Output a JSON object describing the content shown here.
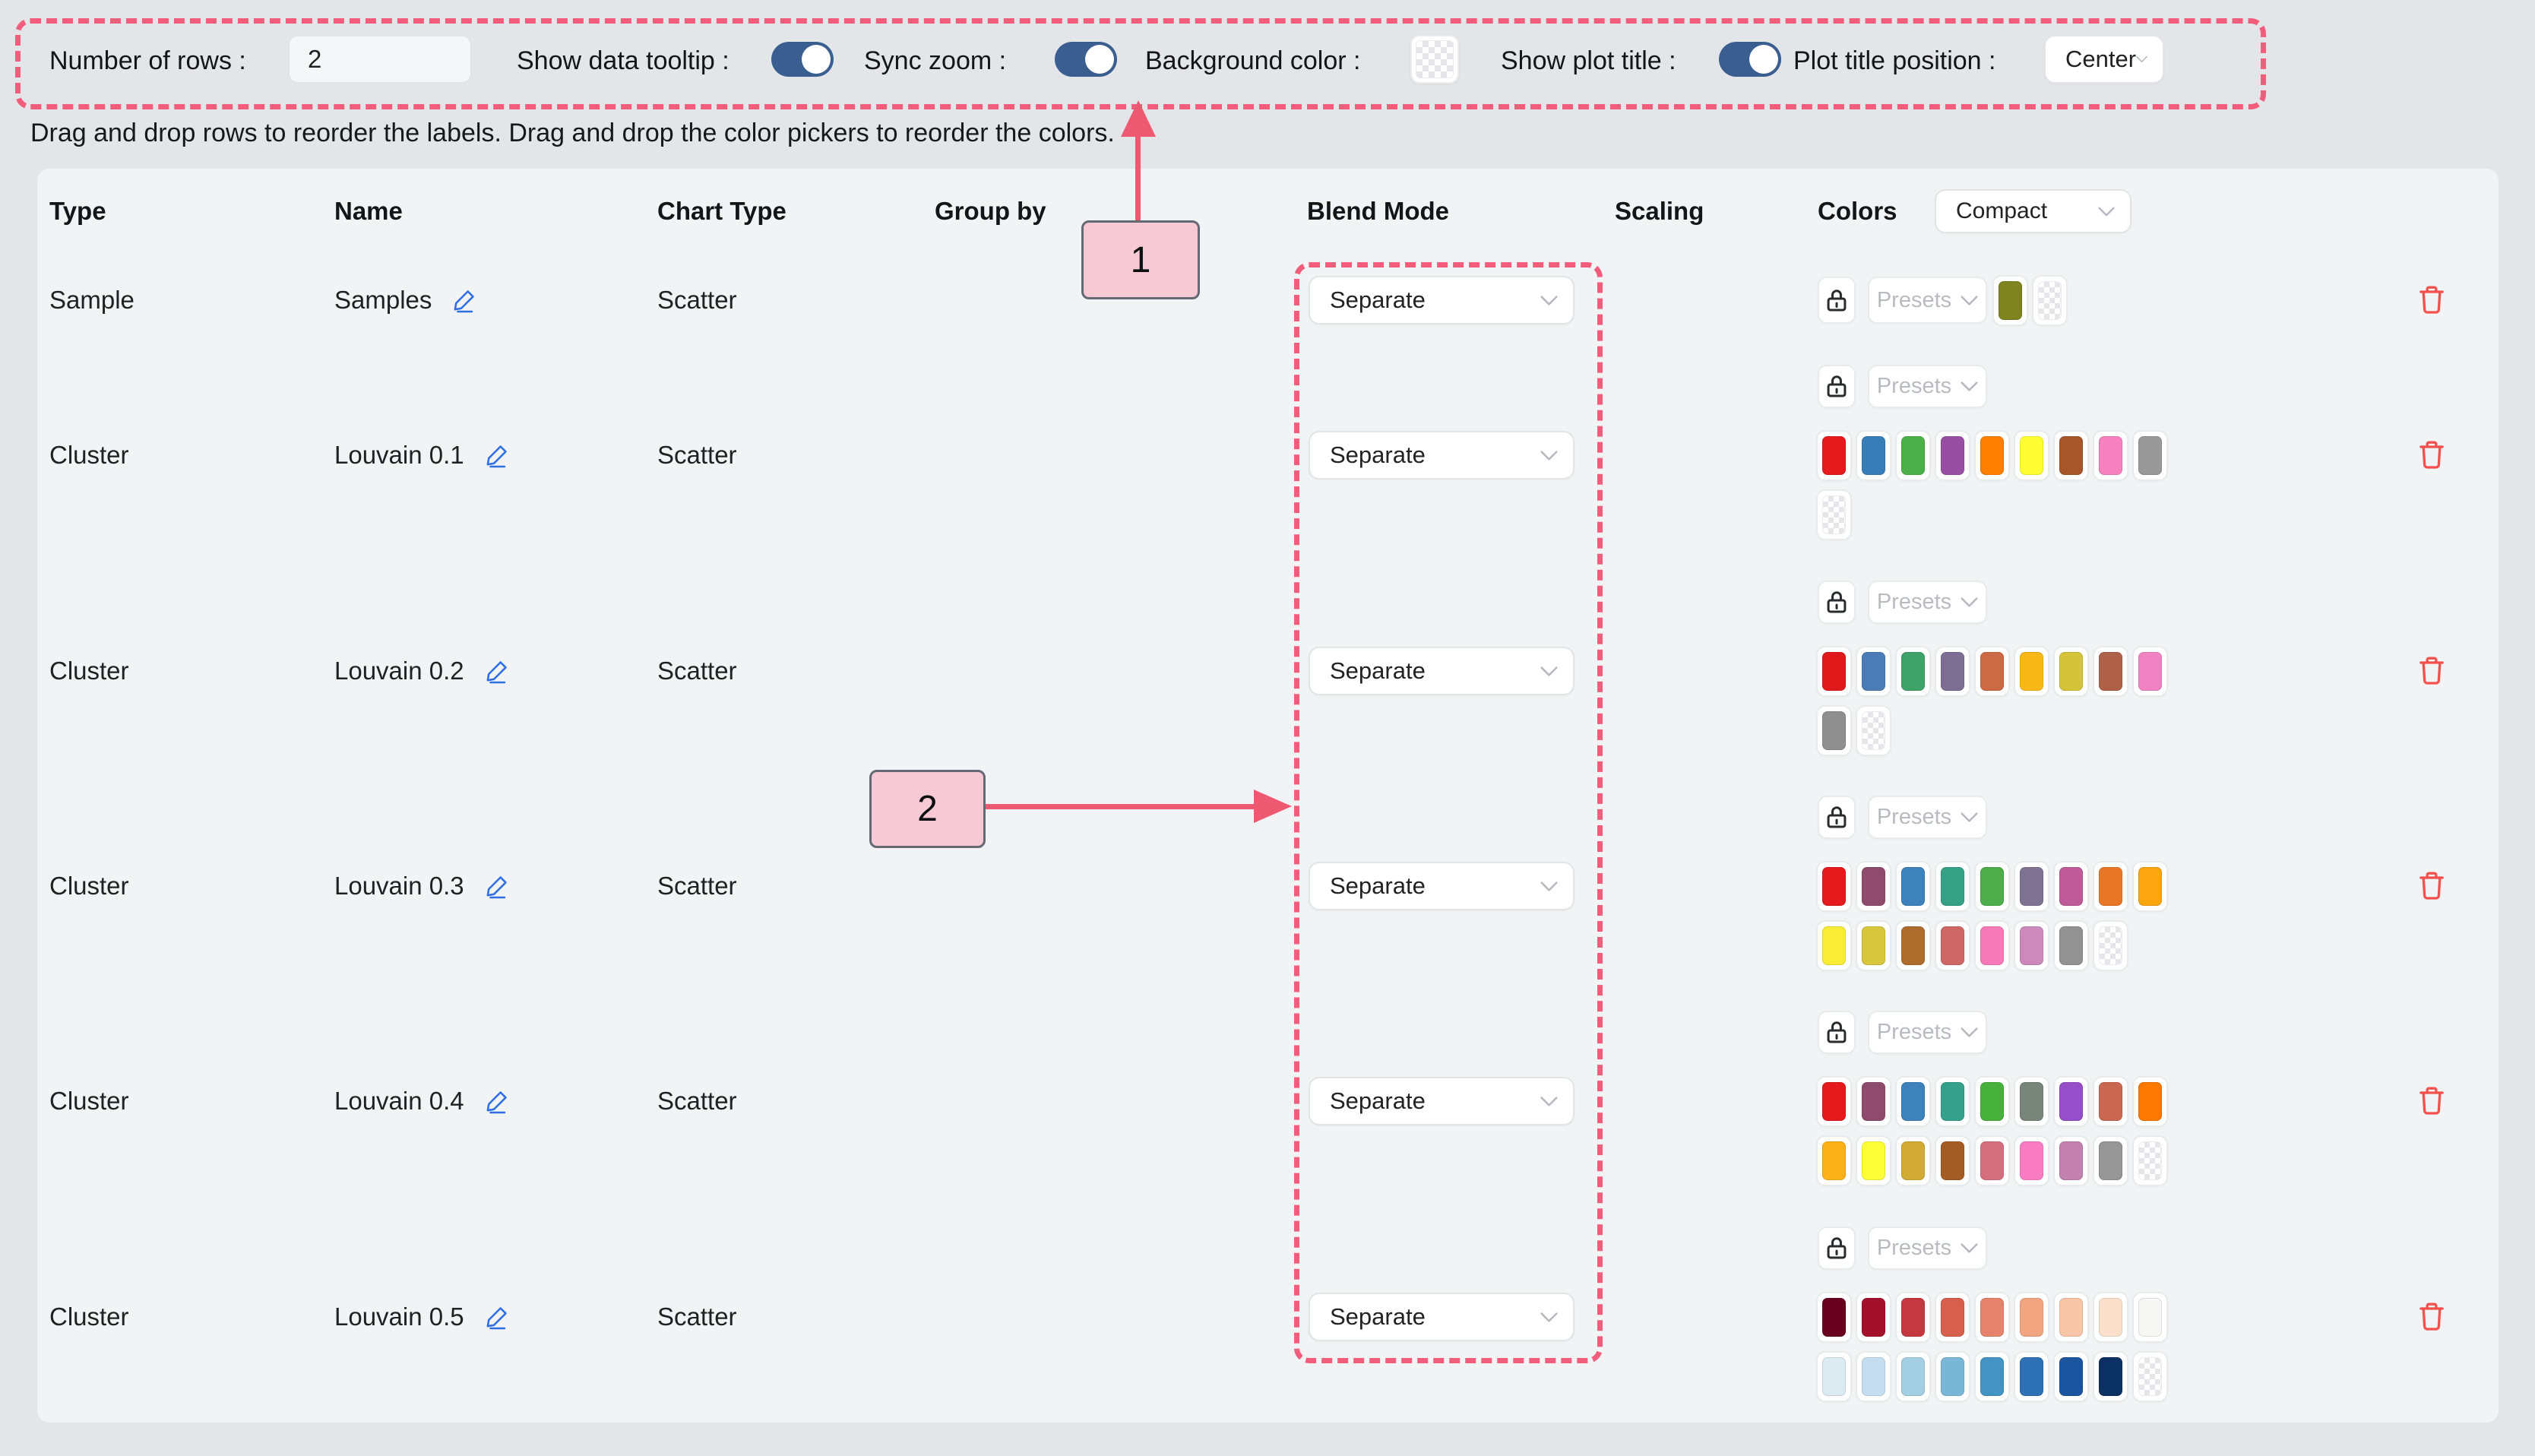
{
  "toolbar": {
    "number_of_rows_label": "Number of rows :",
    "number_of_rows_value": "2",
    "show_data_tooltip_label": "Show data tooltip :",
    "show_data_tooltip_on": true,
    "sync_zoom_label": "Sync zoom :",
    "sync_zoom_on": true,
    "background_color_label": "Background color :",
    "background_color_value": "transparent",
    "show_plot_title_label": "Show plot title :",
    "show_plot_title_on": true,
    "plot_title_position_label": "Plot title position :",
    "plot_title_position_value": "Center"
  },
  "instruction": "Drag and drop rows to reorder the labels. Drag and drop the color pickers to reorder the colors.",
  "table": {
    "headers": [
      "Type",
      "Name",
      "Chart Type",
      "Group by",
      "Blend Mode",
      "Scaling",
      "Colors"
    ],
    "colors_display_mode": "Compact",
    "presets_label": "Presets",
    "rows": [
      {
        "type": "Sample",
        "name": "Samples",
        "chart_type": "Scatter",
        "group_by": "",
        "blend_mode": "Separate",
        "scaling": "",
        "inline_presets": true,
        "color_lines": [
          [
            "#7d8420",
            "transparent"
          ]
        ]
      },
      {
        "type": "Cluster",
        "name": "Louvain 0.1",
        "chart_type": "Scatter",
        "group_by": "",
        "blend_mode": "Separate",
        "scaling": "",
        "inline_presets": false,
        "color_lines": [
          [
            "#e41a1c",
            "#377eb8",
            "#4daf4a",
            "#984ea3",
            "#ff7f00",
            "#ffff33",
            "#a65628",
            "#f781bf",
            "#999999"
          ],
          [
            "transparent"
          ]
        ]
      },
      {
        "type": "Cluster",
        "name": "Louvain 0.2",
        "chart_type": "Scatter",
        "group_by": "",
        "blend_mode": "Separate",
        "scaling": "",
        "inline_presets": false,
        "color_lines": [
          [
            "#e01a1b",
            "#4a7db6",
            "#3fa268",
            "#7d6e93",
            "#cc6a45",
            "#f9b817",
            "#d5c43a",
            "#ae6148",
            "#f083c1"
          ],
          [
            "#8f8f8f",
            "transparent"
          ]
        ]
      },
      {
        "type": "Cluster",
        "name": "Louvain 0.3",
        "chart_type": "Scatter",
        "group_by": "",
        "blend_mode": "Separate",
        "scaling": "",
        "inline_presets": false,
        "color_lines": [
          [
            "#e41a1c",
            "#8f4b6c",
            "#3d82ba",
            "#36a184",
            "#4cad4a",
            "#7f7392",
            "#bf5b98",
            "#e87627",
            "#fba50f"
          ],
          [
            "#f8ec35",
            "#d8c63c",
            "#ad6c2b",
            "#cd6866",
            "#f67ab8",
            "#cc8abc",
            "#929292",
            "transparent"
          ]
        ]
      },
      {
        "type": "Cluster",
        "name": "Louvain 0.4",
        "chart_type": "Scatter",
        "group_by": "",
        "blend_mode": "Separate",
        "scaling": "",
        "inline_presets": false,
        "color_lines": [
          [
            "#e41a1c",
            "#8f4b6c",
            "#3d82ba",
            "#35a08c",
            "#47b13c",
            "#78857b",
            "#964fc8",
            "#c96751",
            "#fb7801"
          ],
          [
            "#fbb117",
            "#fdfe38",
            "#d2ab34",
            "#a35c23",
            "#d56e7e",
            "#f97cc3",
            "#c281ae",
            "#969696",
            "transparent"
          ]
        ]
      },
      {
        "type": "Cluster",
        "name": "Louvain 0.5",
        "chart_type": "Scatter",
        "group_by": "",
        "blend_mode": "Separate",
        "scaling": "",
        "inline_presets": false,
        "color_lines": [
          [
            "#67001f",
            "#a3102a",
            "#c4383f",
            "#d6604d",
            "#e5836c",
            "#f2a581",
            "#f8c6a6",
            "#fbe1cc",
            "#f6f6f4"
          ],
          [
            "#dcebf2",
            "#c4def0",
            "#a4cee3",
            "#7ab6d6",
            "#4393c3",
            "#2d70b3",
            "#1b549f",
            "#0a3161",
            "transparent"
          ]
        ]
      }
    ]
  },
  "annotations": {
    "accent_color": "#f25d7c",
    "box_fill": "#f6c9d4",
    "label_1": "1",
    "label_2": "2"
  }
}
